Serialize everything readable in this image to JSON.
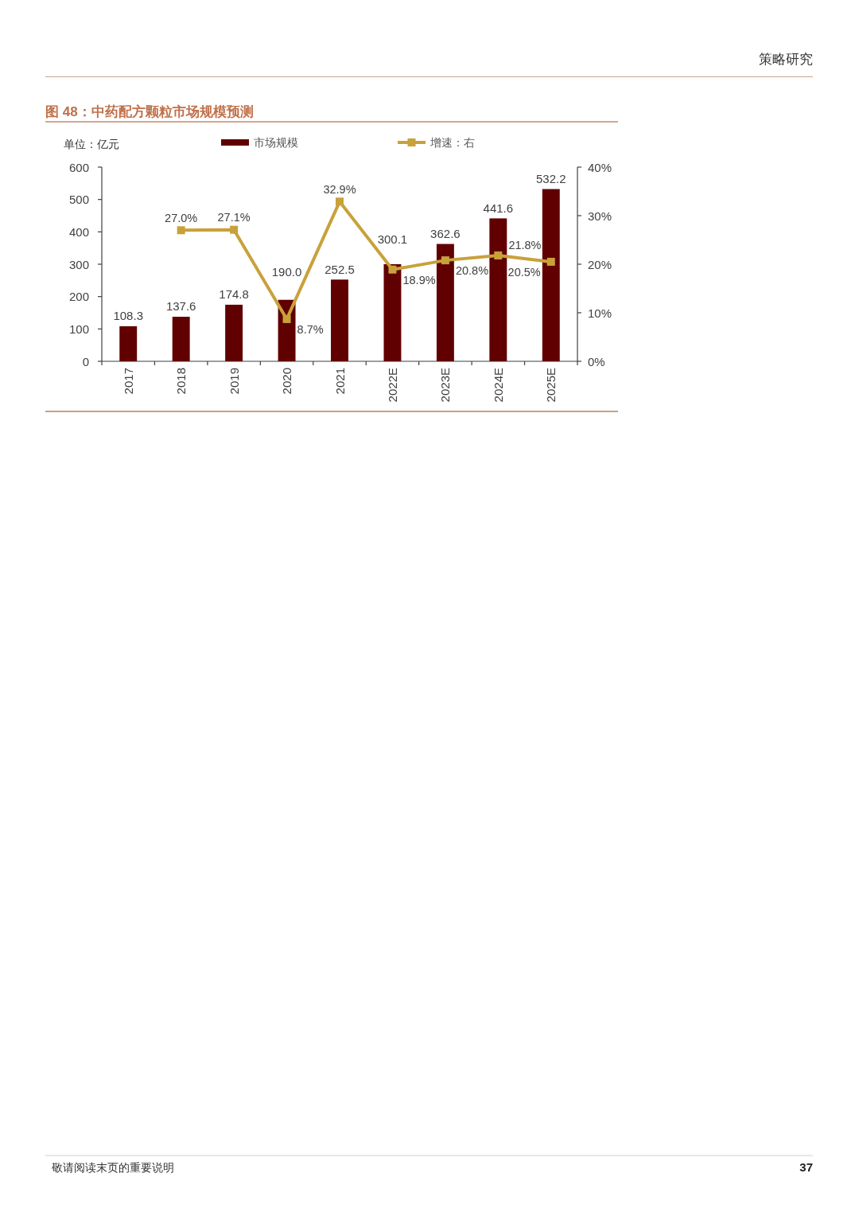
{
  "chart_data": {
    "type": "bar",
    "title": "图 48：中药配方颗粒市场规模预测",
    "categories": [
      "2017",
      "2018",
      "2019",
      "2020",
      "2021",
      "2022E",
      "2023E",
      "2024E",
      "2025E"
    ],
    "series": [
      {
        "name": "市场规模",
        "color": "#600000",
        "values": [
          108.3,
          137.6,
          174.8,
          190.0,
          252.5,
          300.1,
          362.6,
          441.6,
          532.2
        ],
        "value_labels": [
          "108.3",
          "137.6",
          "174.8",
          "190.0",
          "252.5",
          "300.1",
          "362.6",
          "441.6",
          "532.2"
        ]
      },
      {
        "name": "增速：右",
        "type": "line",
        "axis": "y2",
        "color": "#c9a13b",
        "marker": "square",
        "values": [
          null,
          27.0,
          27.1,
          8.7,
          32.9,
          18.9,
          20.8,
          21.8,
          20.5
        ],
        "value_labels": [
          null,
          "27.0%",
          "27.1%",
          "8.7%",
          "32.9%",
          "18.9%",
          "20.8%",
          "21.8%",
          "20.5%"
        ]
      }
    ],
    "ylim": [
      0,
      600
    ],
    "yticks": [
      0,
      100,
      200,
      300,
      400,
      500,
      600
    ],
    "y2lim": [
      0,
      40
    ],
    "y2ticks": [
      {
        "value": 0,
        "label": "0%"
      },
      {
        "value": 10,
        "label": "10%"
      },
      {
        "value": 20,
        "label": "20%"
      },
      {
        "value": 30,
        "label": "30%"
      },
      {
        "value": 40,
        "label": "40%"
      }
    ],
    "legend": "top",
    "grid": false,
    "annotations": [
      "单位：亿元",
      "策略研究",
      "敬请阅读末页的重要说明",
      "37"
    ]
  }
}
